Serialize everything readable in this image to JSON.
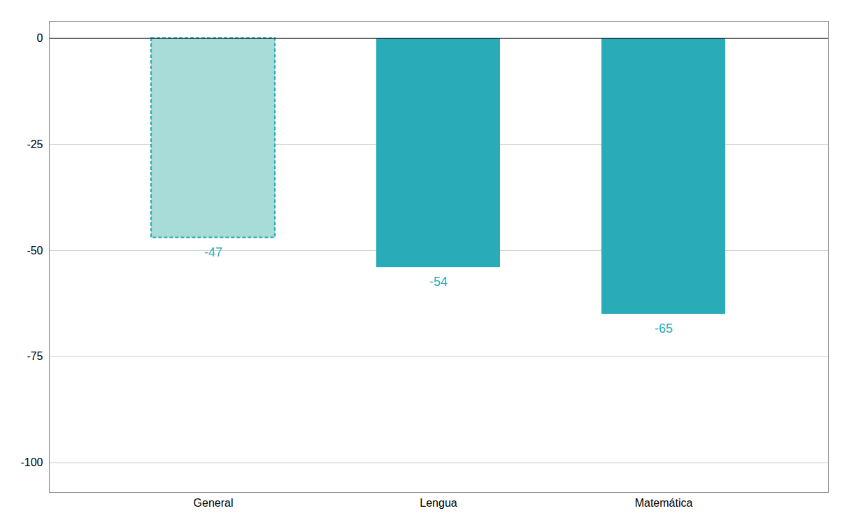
{
  "chart_data": {
    "type": "bar",
    "categories": [
      "General",
      "Lengua",
      "Matemática"
    ],
    "values": [
      -47,
      -54,
      -65
    ],
    "colors": [
      "#a8dcd9",
      "#2aacb8",
      "#2aacb8"
    ],
    "color": "#2aacb8",
    "line_style": [
      "dashed",
      "solid",
      "solid"
    ],
    "ylim": [
      -107,
      4
    ],
    "yticks": [
      0,
      -25,
      -50,
      -75,
      -100
    ],
    "grid": true,
    "data_labels": true
  }
}
